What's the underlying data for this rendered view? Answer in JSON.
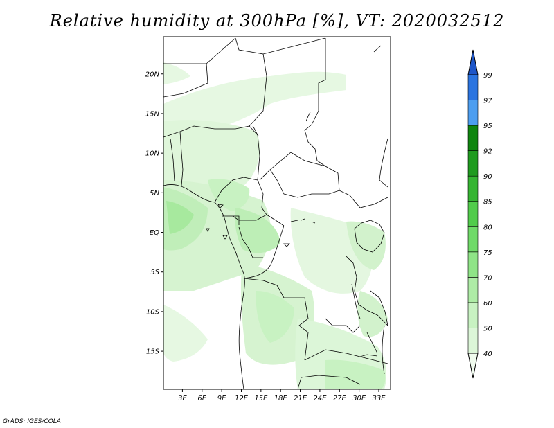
{
  "title": "Relative humidity at 300hPa [%], VT: 2020032512",
  "credit": "GrADS: IGES/COLA",
  "map": {
    "lat_ticks": [
      {
        "value": 20,
        "label": "20N"
      },
      {
        "value": 15,
        "label": "15N"
      },
      {
        "value": 10,
        "label": "10N"
      },
      {
        "value": 5,
        "label": "5N"
      },
      {
        "value": 0,
        "label": "EQ"
      },
      {
        "value": -5,
        "label": "5S"
      },
      {
        "value": -10,
        "label": "10S"
      },
      {
        "value": -15,
        "label": "15S"
      }
    ],
    "lon_ticks": [
      {
        "value": 3,
        "label": "3E"
      },
      {
        "value": 6,
        "label": "6E"
      },
      {
        "value": 9,
        "label": "9E"
      },
      {
        "value": 12,
        "label": "12E"
      },
      {
        "value": 15,
        "label": "15E"
      },
      {
        "value": 18,
        "label": "18E"
      },
      {
        "value": 21,
        "label": "21E"
      },
      {
        "value": 24,
        "label": "24E"
      },
      {
        "value": 27,
        "label": "27E"
      },
      {
        "value": 30,
        "label": "30E"
      },
      {
        "value": 33,
        "label": "33E"
      }
    ],
    "lon_range": [
      0.1,
      34.8
    ],
    "lat_range": [
      -19.8,
      24.7
    ]
  },
  "colorbar": {
    "levels": [
      "40",
      "50",
      "60",
      "70",
      "75",
      "80",
      "85",
      "90",
      "92",
      "95",
      "97",
      "99"
    ],
    "colors": [
      "#f0fbee",
      "#dcf6d8",
      "#c8f2c2",
      "#aeeca6",
      "#8fe487",
      "#6fda68",
      "#51cc4b",
      "#35b532",
      "#1f9b1f",
      "#0f850f",
      "#4d9ef0",
      "#2b74e0",
      "#1e56c8"
    ]
  }
}
